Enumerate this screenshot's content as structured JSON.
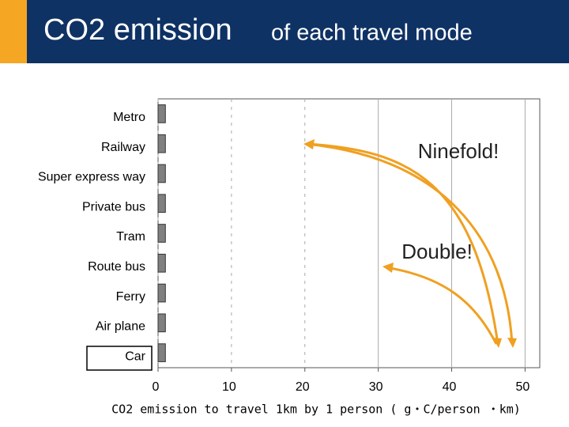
{
  "chart_data": {
    "type": "bar",
    "orientation": "horizontal",
    "title": "CO2 emission",
    "subtitle": "of each travel mode",
    "categories": [
      "Metro",
      "Railway",
      "Super express way",
      "Private bus",
      "Tram",
      "Route bus",
      "Ferry",
      "Air plane",
      "Car"
    ],
    "values": [
      1,
      1,
      1,
      1,
      1,
      1,
      1,
      1,
      1
    ],
    "color": "#808080",
    "xlim": [
      0,
      52
    ],
    "xticks": [
      0,
      10,
      20,
      30,
      40,
      50
    ],
    "xlabel": "CO2 emission to travel 1km by 1 person ( g・C/person ・km)",
    "grid": true,
    "annotations": [
      "Ninefold!",
      "Double!"
    ]
  }
}
